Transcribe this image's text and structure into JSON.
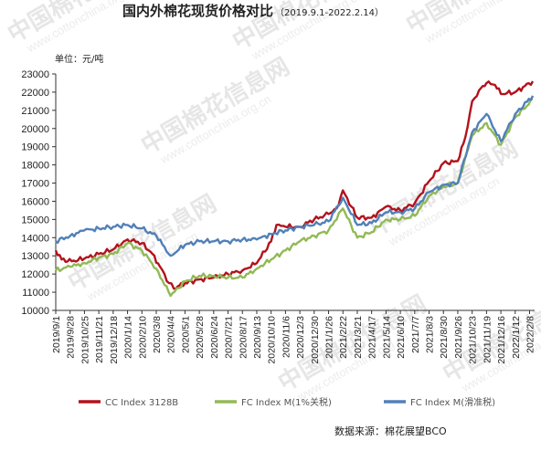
{
  "watermark": {
    "text": "中国棉花信息网",
    "url": "www.cottonchina.org.cn"
  },
  "chart_data": {
    "type": "line",
    "title": "国内外棉花现货价格对比",
    "subtitle": "（2019.9.1-2022.2.14）",
    "ylabel": "单位：元/吨",
    "ylim": [
      10000,
      23000
    ],
    "yticks": [
      10000,
      11000,
      12000,
      13000,
      14000,
      15000,
      16000,
      17000,
      18000,
      19000,
      20000,
      21000,
      22000,
      23000
    ],
    "x_tick_labels": [
      "2019/9/1",
      "2019/9/28",
      "2019/10/25",
      "2019/11/21",
      "2019/12/18",
      "2020/1/14",
      "2020/2/10",
      "2020/3/8",
      "2020/4/4",
      "2020/5/1",
      "2020/5/28",
      "2020/6/24",
      "2020/7/21",
      "2020/8/17",
      "2020/9/13",
      "2020/10/10",
      "2020/11/6",
      "2020/12/3",
      "2020/12/30",
      "2021/1/26",
      "2021/2/22",
      "2021/3/21",
      "2021/4/17",
      "2021/5/14",
      "2021/6/10",
      "2021/7/7",
      "2021/8/3",
      "2021/8/30",
      "2021/9/26",
      "2021/10/23",
      "2021/11/19",
      "2021/12/16",
      "2022/1/12",
      "2022/2/8"
    ],
    "x_range": [
      "2019/9/1",
      "2022/2/14"
    ],
    "grid": false,
    "legend_position": "bottom",
    "series": [
      {
        "name": "CC Index 3128B",
        "color": "#b3121c",
        "points": [
          [
            "2019/9/1",
            13300
          ],
          [
            "2019/9/12",
            12800
          ],
          [
            "2019/10/1",
            12700
          ],
          [
            "2019/10/25",
            12850
          ],
          [
            "2019/11/21",
            13100
          ],
          [
            "2019/12/18",
            13350
          ],
          [
            "2020/1/14",
            13900
          ],
          [
            "2020/2/10",
            13700
          ],
          [
            "2020/3/1",
            13100
          ],
          [
            "2020/3/15",
            12400
          ],
          [
            "2020/4/1",
            11500
          ],
          [
            "2020/4/10",
            11200
          ],
          [
            "2020/5/1",
            11500
          ],
          [
            "2020/5/28",
            11700
          ],
          [
            "2020/6/24",
            11800
          ],
          [
            "2020/7/21",
            12000
          ],
          [
            "2020/8/17",
            12200
          ],
          [
            "2020/9/13",
            12600
          ],
          [
            "2020/10/10",
            13800
          ],
          [
            "2020/10/20",
            14700
          ],
          [
            "2020/11/6",
            14600
          ],
          [
            "2020/12/3",
            14600
          ],
          [
            "2020/12/30",
            15000
          ],
          [
            "2021/1/26",
            15300
          ],
          [
            "2021/2/10",
            15600
          ],
          [
            "2021/2/22",
            16600
          ],
          [
            "2021/3/10",
            15700
          ],
          [
            "2021/3/21",
            15100
          ],
          [
            "2021/4/17",
            15100
          ],
          [
            "2021/5/14",
            15700
          ],
          [
            "2021/6/10",
            15500
          ],
          [
            "2021/7/7",
            15900
          ],
          [
            "2021/8/3",
            17100
          ],
          [
            "2021/8/30",
            18100
          ],
          [
            "2021/9/26",
            18200
          ],
          [
            "2021/10/10",
            19500
          ],
          [
            "2021/10/23",
            21500
          ],
          [
            "2021/11/5",
            22100
          ],
          [
            "2021/11/19",
            22500
          ],
          [
            "2021/12/5",
            22400
          ],
          [
            "2021/12/16",
            21900
          ],
          [
            "2022/1/12",
            22000
          ],
          [
            "2022/2/14",
            22600
          ]
        ]
      },
      {
        "name": "FC Index M(1%关税)",
        "color": "#92b956",
        "points": [
          [
            "2019/9/1",
            12200
          ],
          [
            "2019/9/28",
            12400
          ],
          [
            "2019/10/25",
            12600
          ],
          [
            "2019/11/21",
            12900
          ],
          [
            "2019/12/18",
            13100
          ],
          [
            "2020/1/14",
            13700
          ],
          [
            "2020/2/10",
            13300
          ],
          [
            "2020/3/8",
            12300
          ],
          [
            "2020/4/4",
            10800
          ],
          [
            "2020/5/1",
            11600
          ],
          [
            "2020/5/28",
            11900
          ],
          [
            "2020/6/24",
            11900
          ],
          [
            "2020/7/21",
            11800
          ],
          [
            "2020/8/17",
            11800
          ],
          [
            "2020/9/13",
            12300
          ],
          [
            "2020/10/10",
            12800
          ],
          [
            "2020/11/6",
            13300
          ],
          [
            "2020/12/3",
            13800
          ],
          [
            "2020/12/30",
            14100
          ],
          [
            "2021/1/26",
            14400
          ],
          [
            "2021/2/22",
            15600
          ],
          [
            "2021/3/21",
            14000
          ],
          [
            "2021/4/17",
            14300
          ],
          [
            "2021/5/14",
            15000
          ],
          [
            "2021/6/10",
            15000
          ],
          [
            "2021/7/7",
            15200
          ],
          [
            "2021/8/3",
            16300
          ],
          [
            "2021/8/30",
            16800
          ],
          [
            "2021/9/26",
            17000
          ],
          [
            "2021/10/23",
            19600
          ],
          [
            "2021/11/19",
            20300
          ],
          [
            "2021/12/16",
            19100
          ],
          [
            "2022/1/12",
            20600
          ],
          [
            "2022/2/14",
            21600
          ]
        ]
      },
      {
        "name": "FC Index M(滑准税)",
        "color": "#5180b8",
        "points": [
          [
            "2019/9/1",
            13800
          ],
          [
            "2019/9/28",
            14100
          ],
          [
            "2019/10/25",
            14400
          ],
          [
            "2019/11/21",
            14500
          ],
          [
            "2019/12/18",
            14600
          ],
          [
            "2020/1/14",
            14700
          ],
          [
            "2020/2/10",
            14500
          ],
          [
            "2020/3/8",
            14100
          ],
          [
            "2020/4/4",
            13000
          ],
          [
            "2020/5/1",
            13600
          ],
          [
            "2020/5/28",
            13800
          ],
          [
            "2020/6/24",
            13800
          ],
          [
            "2020/7/21",
            13800
          ],
          [
            "2020/8/17",
            13900
          ],
          [
            "2020/9/13",
            13900
          ],
          [
            "2020/10/10",
            14200
          ],
          [
            "2020/11/6",
            14400
          ],
          [
            "2020/12/3",
            14600
          ],
          [
            "2020/12/30",
            14700
          ],
          [
            "2021/1/26",
            14900
          ],
          [
            "2021/2/22",
            16200
          ],
          [
            "2021/3/21",
            14700
          ],
          [
            "2021/4/17",
            14800
          ],
          [
            "2021/5/14",
            15400
          ],
          [
            "2021/6/10",
            15400
          ],
          [
            "2021/7/7",
            15600
          ],
          [
            "2021/8/3",
            16500
          ],
          [
            "2021/8/30",
            16900
          ],
          [
            "2021/9/26",
            17000
          ],
          [
            "2021/10/23",
            19800
          ],
          [
            "2021/11/19",
            20800
          ],
          [
            "2021/12/16",
            19300
          ],
          [
            "2022/1/12",
            20800
          ],
          [
            "2022/2/14",
            21800
          ]
        ]
      }
    ],
    "source": "数据来源：棉花展望BCO"
  }
}
